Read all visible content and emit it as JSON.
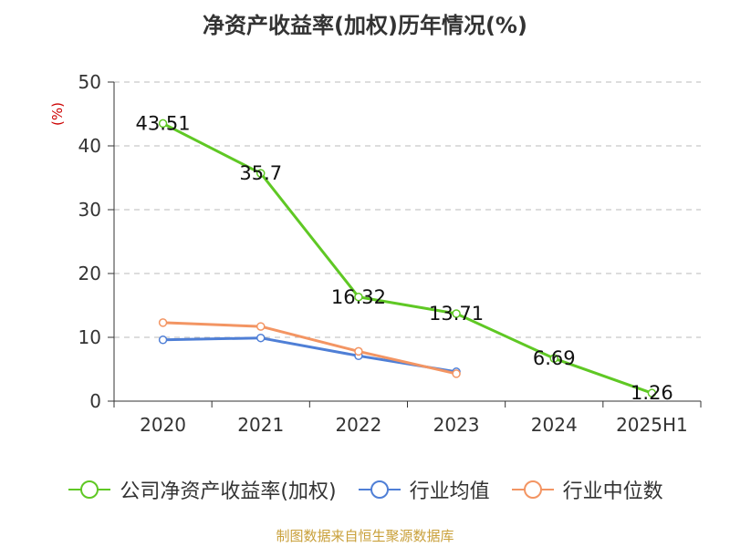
{
  "chart_data": {
    "type": "line",
    "title": "净资产收益率(加权)历年情况(%)",
    "ylabel": "(%)",
    "xlabel": "",
    "categories": [
      "2020",
      "2021",
      "2022",
      "2023",
      "2024",
      "2025H1"
    ],
    "ylim": [
      0,
      50
    ],
    "yticks": [
      0,
      10,
      20,
      30,
      40,
      50
    ],
    "grid": "horizontal-dashed",
    "legend_position": "bottom",
    "series": [
      {
        "name": "公司净资产收益率(加权)",
        "color": "#5fc824",
        "values": [
          43.51,
          35.7,
          16.32,
          13.71,
          6.69,
          1.26
        ],
        "labels": [
          "43.51",
          "35.7",
          "16.32",
          "13.71",
          "6.69",
          "1.26"
        ]
      },
      {
        "name": "行业均值",
        "color": "#4f7fd6",
        "values": [
          9.6,
          9.9,
          7.1,
          4.6,
          null,
          null
        ]
      },
      {
        "name": "行业中位数",
        "color": "#f39563",
        "values": [
          12.3,
          11.7,
          7.8,
          4.3,
          null,
          null
        ]
      }
    ]
  },
  "source": "制图数据来自恒生聚源数据库"
}
